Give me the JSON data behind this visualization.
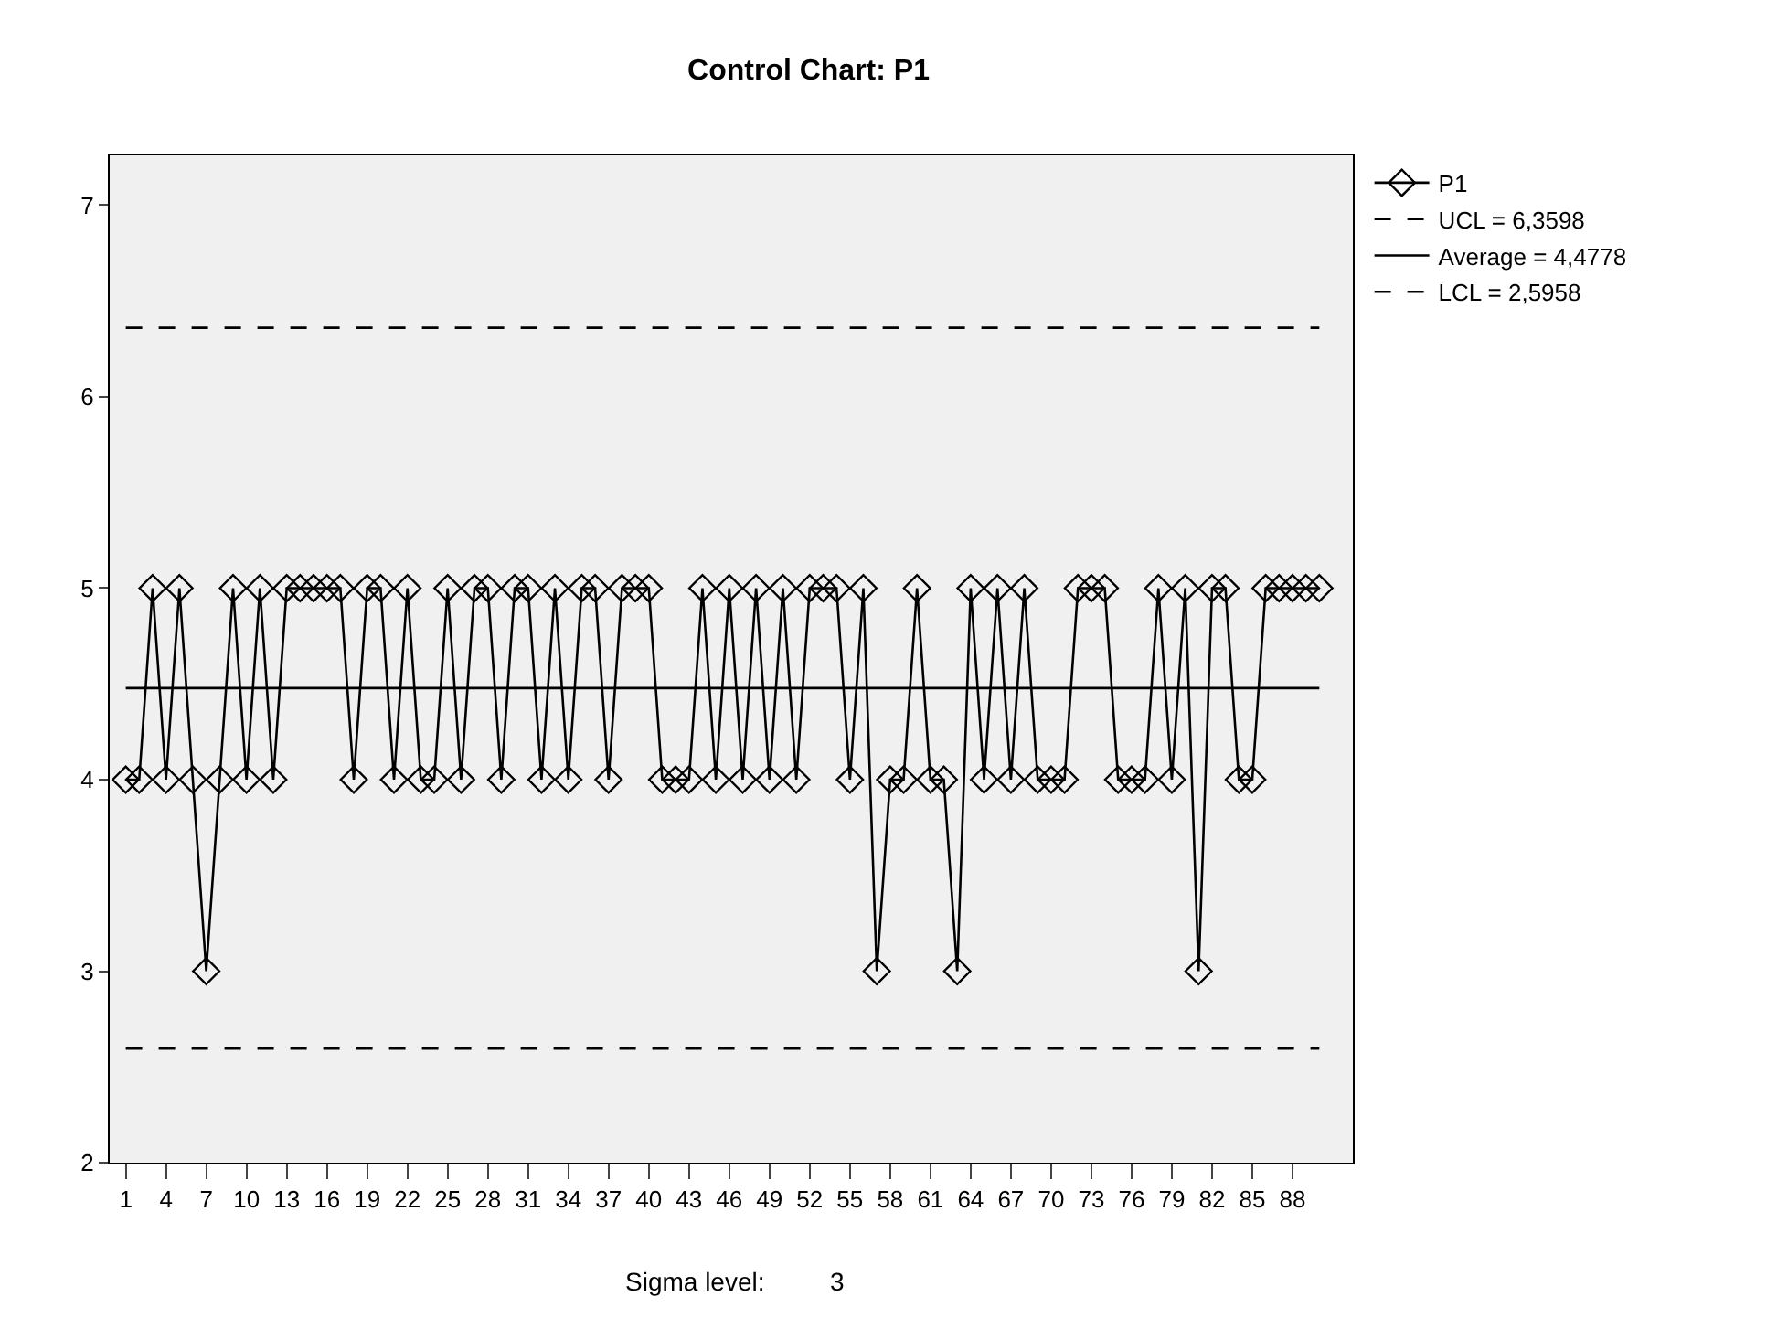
{
  "chart_data": {
    "type": "line",
    "title": "Control Chart: P1",
    "categories": [
      "1",
      null,
      null,
      "4",
      null,
      null,
      "7",
      null,
      null,
      "10",
      null,
      null,
      "13",
      null,
      null,
      "16",
      null,
      null,
      "19",
      null,
      null,
      "22",
      null,
      null,
      "25",
      null,
      null,
      "28",
      null,
      null,
      "31",
      null,
      null,
      "34",
      null,
      null,
      "37",
      null,
      null,
      "40",
      null,
      null,
      "43",
      null,
      null,
      "46",
      null,
      null,
      "49",
      null,
      null,
      "52",
      null,
      null,
      "55",
      null,
      null,
      "58",
      null,
      null,
      "61",
      null,
      null,
      "64",
      null,
      null,
      "67",
      null,
      null,
      "70",
      null,
      null,
      "73",
      null,
      null,
      "76",
      null,
      null,
      "79",
      null,
      null,
      "82",
      null,
      null,
      "85",
      null,
      null,
      "88",
      null,
      null
    ],
    "series": [
      {
        "name": "P1",
        "color": "#000000",
        "values": [
          4,
          4,
          5,
          4,
          5,
          4,
          3,
          4,
          5,
          4,
          5,
          4,
          5,
          5,
          5,
          5,
          5,
          4,
          5,
          5,
          4,
          5,
          4,
          4,
          5,
          4,
          5,
          5,
          4,
          5,
          5,
          4,
          5,
          4,
          5,
          5,
          4,
          5,
          5,
          5,
          4,
          4,
          4,
          5,
          4,
          5,
          4,
          5,
          4,
          5,
          4,
          5,
          5,
          5,
          4,
          5,
          3,
          4,
          4,
          5,
          4,
          4,
          3,
          5,
          4,
          5,
          4,
          5,
          4,
          4,
          4,
          5,
          5,
          5,
          4,
          4,
          4,
          5,
          4,
          5,
          3,
          5,
          5,
          4,
          4,
          5,
          5,
          5,
          5,
          5
        ]
      }
    ],
    "ylim": [
      2,
      7.26
    ],
    "yticks": [
      2,
      3,
      4,
      5,
      6,
      7
    ],
    "ref_lines": [
      {
        "axis": "y",
        "value": 6.3598,
        "label": "UCL = 6,3598",
        "line_style": "dashed",
        "color": "#000000"
      },
      {
        "axis": "y",
        "value": 4.4778,
        "label": "Average = 4,4778",
        "line_style": "solid",
        "color": "#000000"
      },
      {
        "axis": "y",
        "value": 2.5958,
        "label": "LCL = 2,5958",
        "line_style": "dashed",
        "color": "#000000"
      }
    ],
    "annotations": [
      "Sigma level:",
      "3"
    ],
    "marker": "diamond",
    "line_style": "solid",
    "grid": false,
    "legend": "top right"
  }
}
